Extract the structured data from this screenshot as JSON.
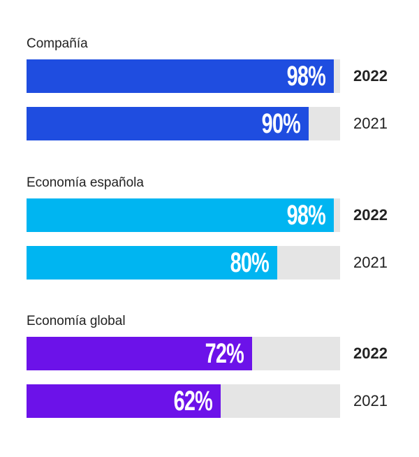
{
  "chart_data": {
    "type": "bar",
    "orientation": "horizontal",
    "xlim": [
      0,
      100
    ],
    "groups": [
      {
        "label": "Compañía",
        "color": "#1f4de0",
        "bars": [
          {
            "year": "2022",
            "value": 98,
            "label": "98%",
            "bold": true
          },
          {
            "year": "2021",
            "value": 90,
            "label": "90%",
            "bold": false
          }
        ]
      },
      {
        "label": "Economía española",
        "color": "#00b5f1",
        "bars": [
          {
            "year": "2022",
            "value": 98,
            "label": "98%",
            "bold": true
          },
          {
            "year": "2021",
            "value": 80,
            "label": "80%",
            "bold": false
          }
        ]
      },
      {
        "label": "Economía global",
        "color": "#6c12e9",
        "bars": [
          {
            "year": "2022",
            "value": 72,
            "label": "72%",
            "bold": true
          },
          {
            "year": "2021",
            "value": 62,
            "label": "62%",
            "bold": false
          }
        ]
      }
    ],
    "track_color": "#e5e5e5"
  }
}
